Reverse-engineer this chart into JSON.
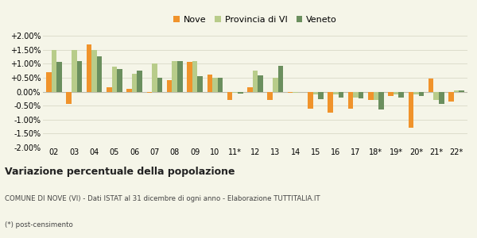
{
  "categories": [
    "02",
    "03",
    "04",
    "05",
    "06",
    "07",
    "08",
    "09",
    "10",
    "11*",
    "12",
    "13",
    "14",
    "15",
    "16",
    "17",
    "18*",
    "19*",
    "20*",
    "21*",
    "22*"
  ],
  "nove": [
    0.7,
    -0.45,
    1.68,
    0.15,
    0.1,
    -0.05,
    0.4,
    1.05,
    0.6,
    -0.3,
    0.15,
    -0.3,
    -0.05,
    -0.6,
    -0.75,
    -0.6,
    -0.3,
    -0.15,
    -1.3,
    0.48,
    -0.35
  ],
  "provincia": [
    1.5,
    1.5,
    1.5,
    0.88,
    0.65,
    1.0,
    1.1,
    1.1,
    0.5,
    -0.05,
    0.75,
    0.5,
    -0.03,
    -0.1,
    -0.1,
    -0.2,
    -0.3,
    -0.1,
    -0.1,
    -0.3,
    0.05
  ],
  "veneto": [
    1.05,
    1.1,
    1.25,
    0.82,
    0.75,
    0.5,
    1.1,
    0.55,
    0.5,
    -0.08,
    0.58,
    0.93,
    -0.02,
    -0.28,
    -0.2,
    -0.25,
    -0.65,
    -0.2,
    -0.15,
    -0.45,
    0.05
  ],
  "color_nove": "#f0932b",
  "color_provincia": "#b8cc8a",
  "color_veneto": "#6b8f5e",
  "background": "#f5f5e8",
  "grid_color": "#ddddcc",
  "subtitle": "COMUNE DI NOVE (VI) - Dati ISTAT al 31 dicembre di ogni anno - Elaborazione TUTTITALIA.IT",
  "footnote": "(*) post-censimento",
  "title1": "Variazione percentuale della popolazione",
  "ylim": [
    -2.0,
    2.0
  ],
  "ytick_vals": [
    -2.0,
    -1.5,
    -1.0,
    -0.5,
    0.0,
    0.5,
    1.0,
    1.5,
    2.0
  ],
  "ytick_labels": [
    "-2.00%",
    "-1.50%",
    "-1.00%",
    "-0.50%",
    "0.00%",
    "+0.50%",
    "+1.00%",
    "+1.50%",
    "+2.00%"
  ]
}
